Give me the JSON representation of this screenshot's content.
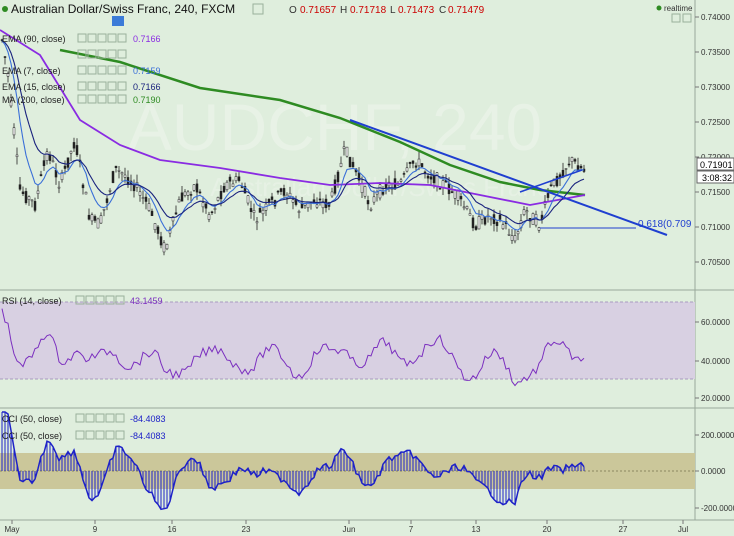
{
  "header": {
    "symbol_title": "Australian Dollar/Swiss Franc, 240, FXCM",
    "ohlc": [
      {
        "k": "O",
        "v": "0.71657"
      },
      {
        "k": "H",
        "v": "0.71718"
      },
      {
        "k": "L",
        "v": "0.71473"
      },
      {
        "k": "C",
        "v": "0.71479"
      }
    ],
    "realtime_label": "realtime",
    "watermark_symbol": "AUDCHF, 240",
    "watermark_sub": "Australian Dollar/Swiss Franc"
  },
  "indicators": [
    {
      "label": "EMA (90, close)",
      "value": "0.7166",
      "color": "#8a2be2"
    },
    {
      "label": "EMA (7, close)",
      "value": "0.7159",
      "color": "#3a6fd8"
    },
    {
      "label": "EMA (15, close)",
      "value": "0.7166",
      "color": "#1a237e"
    },
    {
      "label": "MA (200, close)",
      "value": "0.7190",
      "color": "#2e8b22"
    }
  ],
  "fib_label": "0.618(0.709",
  "price_axis": {
    "ticks": [
      "0.74000",
      "0.73500",
      "0.73000",
      "0.72500",
      "0.72000",
      "0.71500",
      "0.71000",
      "0.70500"
    ],
    "price_tag": "0.71901",
    "countdown_tag": "3:08:32"
  },
  "rsi": {
    "label": "RSI (14, close)",
    "value": "43.1459",
    "ticks": [
      "60.0000",
      "40.0000",
      "20.0000"
    ]
  },
  "cci": {
    "labels": [
      "CCI (50, close)",
      "CCI (50, close)"
    ],
    "values": [
      "-84.4083",
      "-84.4083"
    ],
    "ticks": [
      "200.0000",
      "0.0000",
      "-200.0000"
    ]
  },
  "time_axis": [
    "May",
    "9",
    "16",
    "23",
    "Jun",
    "7",
    "13",
    "20",
    "27",
    "Jul"
  ],
  "colors": {
    "background": "#dfeedd",
    "rsi_band": "#d8d0e2",
    "cci_band": "#cbc79a",
    "rsi_line": "#7b2fbf",
    "cci_line": "#1e22c8",
    "trendline": "#1f3fd0",
    "ma200": "#2e8b22",
    "ema90": "#8a2be2"
  }
}
